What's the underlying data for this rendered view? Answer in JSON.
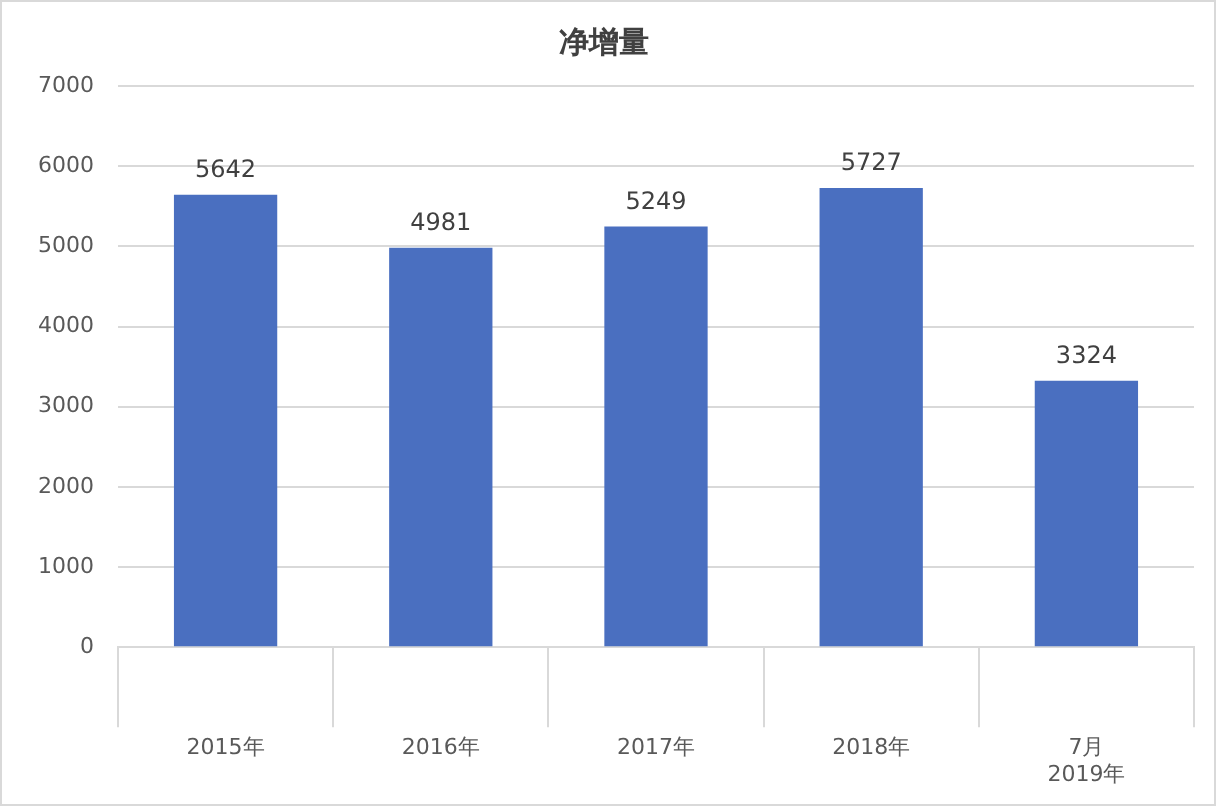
{
  "chart_data": {
    "type": "bar",
    "title": "净增量",
    "categories": [
      "2015年",
      "2016年",
      "2017年",
      "2018年",
      "7月\n2019年"
    ],
    "values": [
      5642,
      4981,
      5249,
      5727,
      3324
    ],
    "color": "#4a6fc0",
    "ylim": [
      0,
      7000
    ],
    "yticks": [
      0,
      1000,
      2000,
      3000,
      4000,
      5000,
      6000,
      7000
    ],
    "grid": "y",
    "data_labels": true,
    "legend": false
  }
}
